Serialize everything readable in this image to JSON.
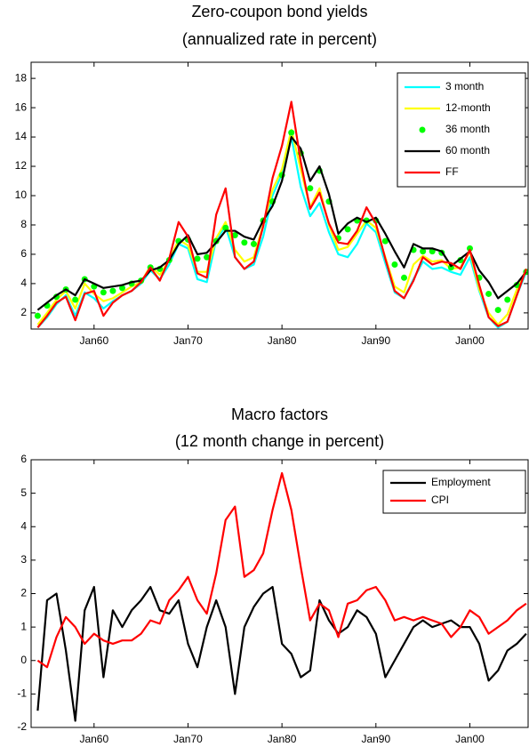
{
  "chart_data": [
    {
      "type": "line",
      "title": "Zero-coupon bond yields",
      "subtitle": "(annualized rate in percent)",
      "x": [
        1954,
        1955,
        1956,
        1957,
        1958,
        1959,
        1960,
        1961,
        1962,
        1963,
        1964,
        1965,
        1966,
        1967,
        1968,
        1969,
        1970,
        1971,
        1972,
        1973,
        1974,
        1975,
        1976,
        1977,
        1978,
        1979,
        1980,
        1981,
        1982,
        1983,
        1984,
        1985,
        1986,
        1987,
        1988,
        1989,
        1990,
        1991,
        1992,
        1993,
        1994,
        1995,
        1996,
        1997,
        1998,
        1999,
        2000,
        2001,
        2002,
        2003,
        2004,
        2005,
        2006
      ],
      "series": [
        {
          "name": "3 month",
          "color": "#00ffff",
          "style": "line",
          "values": [
            1.0,
            1.7,
            2.6,
            3.2,
            1.8,
            3.4,
            3.0,
            2.3,
            2.8,
            3.2,
            3.5,
            4.0,
            4.9,
            4.3,
            5.3,
            6.7,
            6.4,
            4.3,
            4.1,
            7.0,
            7.9,
            5.8,
            5.0,
            5.3,
            7.2,
            10.0,
            11.5,
            14.0,
            10.6,
            8.6,
            9.5,
            7.5,
            6.0,
            5.8,
            6.7,
            8.1,
            7.5,
            5.4,
            3.4,
            3.0,
            4.3,
            5.5,
            5.0,
            5.1,
            4.8,
            4.6,
            5.8,
            3.5,
            1.7,
            1.0,
            1.4,
            3.2,
            4.8
          ]
        },
        {
          "name": "12-month",
          "color": "#ffff00",
          "style": "line",
          "values": [
            1.2,
            2.0,
            2.9,
            3.5,
            2.3,
            4.0,
            3.3,
            2.8,
            3.0,
            3.4,
            3.8,
            4.1,
            5.2,
            4.6,
            5.6,
            7.0,
            6.6,
            4.8,
            4.8,
            7.1,
            8.2,
            6.3,
            5.5,
            5.8,
            8.0,
            10.4,
            11.8,
            14.5,
            11.8,
            9.2,
            10.5,
            8.0,
            6.3,
            6.5,
            7.4,
            8.3,
            7.8,
            5.8,
            3.8,
            3.4,
            5.3,
            5.9,
            5.5,
            5.6,
            5.0,
            5.1,
            6.2,
            3.6,
            2.0,
            1.2,
            1.9,
            3.6,
            5.0
          ]
        },
        {
          "name": "36 month",
          "color": "#00ff00",
          "style": "dots",
          "values": [
            1.8,
            2.5,
            3.1,
            3.6,
            2.9,
            4.3,
            3.8,
            3.4,
            3.5,
            3.7,
            4.0,
            4.2,
            5.1,
            5.0,
            5.6,
            6.9,
            7.0,
            5.7,
            5.8,
            6.9,
            7.8,
            7.3,
            6.8,
            6.7,
            8.3,
            9.6,
            11.4,
            14.3,
            12.9,
            10.5,
            11.7,
            9.6,
            7.1,
            7.7,
            8.3,
            8.3,
            8.3,
            6.9,
            5.3,
            4.4,
            6.3,
            6.2,
            6.2,
            6.1,
            5.1,
            5.6,
            6.4,
            4.4,
            3.3,
            2.2,
            2.9,
            3.9,
            4.8
          ]
        },
        {
          "name": "60 month",
          "color": "#000000",
          "style": "line",
          "values": [
            2.2,
            2.7,
            3.2,
            3.6,
            3.2,
            4.3,
            4.0,
            3.7,
            3.8,
            3.9,
            4.1,
            4.2,
            4.9,
            5.1,
            5.6,
            6.7,
            7.3,
            6.0,
            6.1,
            6.8,
            7.6,
            7.6,
            7.2,
            7.0,
            8.3,
            9.3,
            11.0,
            14.0,
            13.2,
            11.0,
            12.0,
            10.1,
            7.4,
            8.1,
            8.5,
            8.2,
            8.5,
            7.4,
            6.2,
            5.1,
            6.7,
            6.4,
            6.4,
            6.2,
            5.2,
            5.7,
            6.2,
            4.9,
            4.1,
            3.0,
            3.5,
            4.0,
            4.8
          ]
        },
        {
          "name": "FF",
          "color": "#ff0000",
          "style": "line",
          "values": [
            1.0,
            1.8,
            2.7,
            3.1,
            1.5,
            3.3,
            3.5,
            1.8,
            2.7,
            3.2,
            3.5,
            4.1,
            5.1,
            4.2,
            5.7,
            8.2,
            7.2,
            4.7,
            4.4,
            8.7,
            10.5,
            5.8,
            5.0,
            5.5,
            7.9,
            11.2,
            13.4,
            16.4,
            12.3,
            9.1,
            10.2,
            8.1,
            6.8,
            6.7,
            7.6,
            9.2,
            8.1,
            5.7,
            3.5,
            3.0,
            4.2,
            5.8,
            5.3,
            5.5,
            5.4,
            5.0,
            6.3,
            3.9,
            1.7,
            1.1,
            1.4,
            3.2,
            5.0
          ]
        }
      ],
      "xlim": [
        1953.3,
        2006.2
      ],
      "ylim": [
        0.9,
        19.1
      ],
      "xticks": [
        {
          "value": 1960,
          "label": "Jan60"
        },
        {
          "value": 1970,
          "label": "Jan70"
        },
        {
          "value": 1980,
          "label": "Jan80"
        },
        {
          "value": 1990,
          "label": "Jan90"
        },
        {
          "value": 2000,
          "label": "Jan00"
        }
      ],
      "yticks": [
        2,
        4,
        6,
        8,
        10,
        12,
        14,
        16,
        18
      ],
      "legend": "upper right"
    },
    {
      "type": "line",
      "title": "Macro factors",
      "subtitle": "(12 month change in percent)",
      "x": [
        1954,
        1955,
        1956,
        1957,
        1958,
        1959,
        1960,
        1961,
        1962,
        1963,
        1964,
        1965,
        1966,
        1967,
        1968,
        1969,
        1970,
        1971,
        1972,
        1973,
        1974,
        1975,
        1976,
        1977,
        1978,
        1979,
        1980,
        1981,
        1982,
        1983,
        1984,
        1985,
        1986,
        1987,
        1988,
        1989,
        1990,
        1991,
        1992,
        1993,
        1994,
        1995,
        1996,
        1997,
        1998,
        1999,
        2000,
        2001,
        2002,
        2003,
        2004,
        2005,
        2006
      ],
      "series": [
        {
          "name": "Employment",
          "color": "#000000",
          "style": "line",
          "values": [
            -1.5,
            1.8,
            2.0,
            0.3,
            -1.8,
            1.5,
            2.2,
            -0.5,
            1.5,
            1.0,
            1.5,
            1.8,
            2.2,
            1.5,
            1.4,
            1.8,
            0.5,
            -0.2,
            1.0,
            1.8,
            1.0,
            -1.0,
            1.0,
            1.6,
            2.0,
            2.2,
            0.5,
            0.2,
            -0.5,
            -0.3,
            1.8,
            1.2,
            0.8,
            1.0,
            1.5,
            1.3,
            0.8,
            -0.5,
            0.0,
            0.5,
            1.0,
            1.2,
            1.0,
            1.1,
            1.2,
            1.0,
            1.0,
            0.5,
            -0.6,
            -0.3,
            0.3,
            0.5,
            0.8
          ]
        },
        {
          "name": "CPI",
          "color": "#ff0000",
          "style": "line",
          "values": [
            0.0,
            -0.2,
            0.7,
            1.3,
            1.0,
            0.5,
            0.8,
            0.6,
            0.5,
            0.6,
            0.6,
            0.8,
            1.2,
            1.1,
            1.8,
            2.1,
            2.5,
            1.8,
            1.4,
            2.6,
            4.2,
            4.6,
            2.5,
            2.7,
            3.2,
            4.5,
            5.6,
            4.5,
            2.8,
            1.2,
            1.7,
            1.5,
            0.7,
            1.7,
            1.8,
            2.1,
            2.2,
            1.8,
            1.2,
            1.3,
            1.2,
            1.3,
            1.2,
            1.1,
            0.7,
            1.0,
            1.5,
            1.3,
            0.8,
            1.0,
            1.2,
            1.5,
            1.7
          ]
        }
      ],
      "xlim": [
        1953.3,
        2006.2
      ],
      "ylim": [
        -2,
        6
      ],
      "xticks": [
        {
          "value": 1960,
          "label": "Jan60"
        },
        {
          "value": 1970,
          "label": "Jan70"
        },
        {
          "value": 1980,
          "label": "Jan80"
        },
        {
          "value": 1990,
          "label": "Jan90"
        },
        {
          "value": 2000,
          "label": "Jan00"
        }
      ],
      "yticks": [
        -2,
        -1,
        0,
        1,
        2,
        3,
        4,
        5,
        6
      ],
      "legend": "upper right"
    }
  ]
}
